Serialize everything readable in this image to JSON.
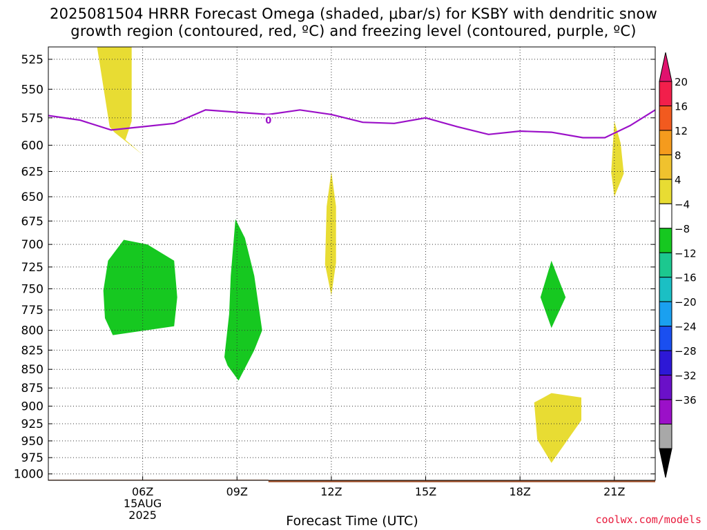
{
  "title_line1": "2025081504 HRRR Forecast Omega (shaded, μbar/s) for KSBY with dendritic snow",
  "title_line2": "growth region (contoured, red, ºC) and freezing level (contoured, purple, ºC)",
  "credit": "coolwx.com/models",
  "chart_data": {
    "type": "contour",
    "xlabel": "Forecast Time (UTC)",
    "ylabel": "",
    "x_unit": "forecast hour (UTC)",
    "y_unit": "pressure (hPa)",
    "xlim": [
      3,
      22.3
    ],
    "ylim": [
      1010,
      515
    ],
    "y_log": true,
    "grid": true,
    "yticks": [
      525,
      550,
      575,
      600,
      625,
      650,
      675,
      700,
      725,
      750,
      775,
      800,
      825,
      850,
      875,
      900,
      925,
      950,
      975,
      1000
    ],
    "xticks": [
      {
        "value": 6,
        "label": "06Z",
        "sub1": "15AUG",
        "sub2": "2025"
      },
      {
        "value": 9,
        "label": "09Z"
      },
      {
        "value": 12,
        "label": "12Z"
      },
      {
        "value": 15,
        "label": "15Z"
      },
      {
        "value": 18,
        "label": "18Z"
      },
      {
        "value": 21,
        "label": "21Z"
      }
    ],
    "colorbar": {
      "labels": [
        "20",
        "16",
        "12",
        "8",
        "4",
        "−4",
        "−8",
        "−12",
        "−16",
        "−20",
        "−24",
        "−28",
        "−32",
        "−36"
      ],
      "colors_top_to_bottom": [
        "#f21f4b",
        "#f25a1f",
        "#f59b1d",
        "#f0c22e",
        "#e8dc33",
        "#ffffff",
        "#16c820",
        "#1cc88f",
        "#1bbfc4",
        "#1aa0f0",
        "#1a4ff0",
        "#2d18d6",
        "#6a10c8",
        "#9b10c8",
        "#a8a8a8"
      ],
      "top_arrow_color": "#e0126e",
      "bottom_arrow_color": "#000000"
    },
    "omega_regions": [
      {
        "color": "#e8dc33",
        "points": [
          [
            4.55,
            515
          ],
          [
            5.65,
            515
          ],
          [
            5.65,
            578
          ],
          [
            5.45,
            595
          ],
          [
            6.0,
            609
          ],
          [
            5.1,
            588
          ],
          [
            4.95,
            583
          ],
          [
            4.55,
            515
          ]
        ]
      },
      {
        "color": "#16c820",
        "points": [
          [
            5.4,
            695
          ],
          [
            6.15,
            700
          ],
          [
            7.0,
            718
          ],
          [
            7.1,
            760
          ],
          [
            7.0,
            795
          ],
          [
            5.05,
            806
          ],
          [
            4.8,
            785
          ],
          [
            4.75,
            752
          ],
          [
            4.9,
            718
          ],
          [
            5.4,
            695
          ]
        ]
      },
      {
        "color": "#16c820",
        "points": [
          [
            8.95,
            673
          ],
          [
            9.25,
            693
          ],
          [
            9.55,
            735
          ],
          [
            9.8,
            800
          ],
          [
            9.55,
            825
          ],
          [
            9.05,
            865
          ],
          [
            8.7,
            845
          ],
          [
            8.6,
            834
          ],
          [
            8.75,
            780
          ],
          [
            8.8,
            735
          ],
          [
            8.95,
            673
          ]
        ]
      },
      {
        "color": "#e8dc33",
        "points": [
          [
            12.0,
            625
          ],
          [
            12.15,
            660
          ],
          [
            12.15,
            720
          ],
          [
            12.0,
            758
          ],
          [
            11.8,
            722
          ],
          [
            11.85,
            660
          ],
          [
            12.0,
            625
          ]
        ]
      },
      {
        "color": "#e8dc33",
        "points": [
          [
            21.0,
            578
          ],
          [
            21.2,
            598
          ],
          [
            21.3,
            627
          ],
          [
            21.0,
            650
          ],
          [
            20.9,
            626
          ],
          [
            21.0,
            578
          ]
        ]
      },
      {
        "color": "#16c820",
        "points": [
          [
            19.0,
            718
          ],
          [
            19.45,
            760
          ],
          [
            19.0,
            797
          ],
          [
            18.65,
            760
          ],
          [
            19.0,
            718
          ]
        ]
      },
      {
        "color": "#e8dc33",
        "points": [
          [
            18.75,
            888
          ],
          [
            19.0,
            882
          ],
          [
            19.95,
            888
          ],
          [
            19.95,
            920
          ],
          [
            19.0,
            983
          ],
          [
            18.55,
            948
          ],
          [
            18.45,
            895
          ],
          [
            18.75,
            888
          ]
        ]
      }
    ],
    "freezing_level": {
      "name": "0",
      "label": "0",
      "label_x": 10.0,
      "label_y": 577,
      "color": "#9b10c8",
      "points": [
        [
          3.0,
          573
        ],
        [
          4.0,
          577
        ],
        [
          5.0,
          586
        ],
        [
          6.0,
          583
        ],
        [
          7.0,
          580
        ],
        [
          8.0,
          568
        ],
        [
          9.0,
          570
        ],
        [
          10.0,
          572
        ],
        [
          11.0,
          568
        ],
        [
          12.0,
          572
        ],
        [
          13.0,
          579
        ],
        [
          14.0,
          580
        ],
        [
          15.0,
          575
        ],
        [
          16.0,
          583
        ],
        [
          17.0,
          590
        ],
        [
          18.0,
          587
        ],
        [
          19.0,
          588
        ],
        [
          20.0,
          593
        ],
        [
          20.7,
          593
        ],
        [
          21.5,
          582
        ],
        [
          22.3,
          568
        ]
      ]
    },
    "terrain": {
      "color": "#a0522d",
      "top_pressure_left": 1009,
      "top_pressure_right": 1013,
      "step_x": 10.0
    }
  }
}
